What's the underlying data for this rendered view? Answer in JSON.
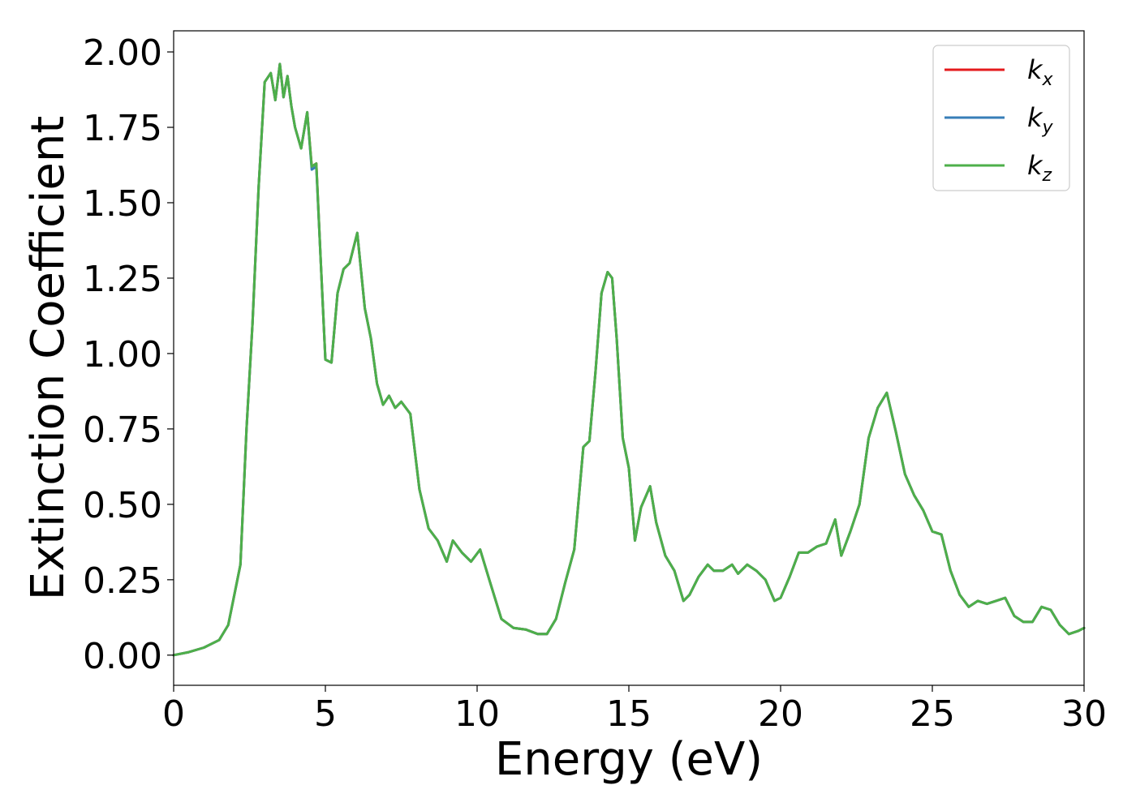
{
  "chart_data": {
    "type": "line",
    "title": "",
    "xlabel": "Energy (eV)",
    "ylabel": "Extinction Coefficient",
    "xlim": [
      0,
      30
    ],
    "ylim": [
      -0.1,
      2.07
    ],
    "xticks": [
      0,
      5,
      10,
      15,
      20,
      25,
      30
    ],
    "xtick_labels": [
      "0",
      "5",
      "10",
      "15",
      "20",
      "25",
      "30"
    ],
    "yticks": [
      0,
      0.25,
      0.5,
      0.75,
      1.0,
      1.25,
      1.5,
      1.75,
      2.0
    ],
    "ytick_labels": [
      "0.00",
      "0.25",
      "0.50",
      "0.75",
      "1.00",
      "1.25",
      "1.50",
      "1.75",
      "2.00"
    ],
    "grid": false,
    "legend_position": "top-right",
    "x": [
      0,
      0.5,
      1.0,
      1.5,
      1.8,
      2.0,
      2.2,
      2.4,
      2.6,
      2.8,
      3.0,
      3.2,
      3.35,
      3.5,
      3.62,
      3.75,
      3.88,
      4.0,
      4.2,
      4.4,
      4.55,
      4.7,
      4.85,
      5.0,
      5.2,
      5.4,
      5.6,
      5.8,
      6.05,
      6.3,
      6.5,
      6.7,
      6.9,
      7.1,
      7.3,
      7.5,
      7.8,
      8.1,
      8.4,
      8.7,
      9.0,
      9.2,
      9.5,
      9.8,
      10.1,
      10.4,
      10.8,
      11.2,
      11.6,
      12.0,
      12.3,
      12.6,
      12.9,
      13.2,
      13.5,
      13.7,
      13.9,
      14.1,
      14.3,
      14.45,
      14.6,
      14.8,
      15.0,
      15.2,
      15.4,
      15.7,
      15.9,
      16.2,
      16.5,
      16.8,
      17.0,
      17.3,
      17.6,
      17.8,
      18.1,
      18.4,
      18.6,
      18.9,
      19.2,
      19.5,
      19.8,
      20.0,
      20.3,
      20.6,
      20.9,
      21.2,
      21.5,
      21.8,
      22.0,
      22.3,
      22.6,
      22.9,
      23.2,
      23.5,
      23.8,
      24.1,
      24.4,
      24.7,
      25.0,
      25.3,
      25.6,
      25.9,
      26.2,
      26.5,
      26.8,
      27.1,
      27.4,
      27.7,
      28.0,
      28.3,
      28.6,
      28.9,
      29.2,
      29.5,
      29.8,
      30.0
    ],
    "series": [
      {
        "name": "x",
        "color": "#e41a1c",
        "values": [
          0.0,
          0.01,
          0.025,
          0.05,
          0.1,
          0.2,
          0.3,
          0.75,
          1.1,
          1.55,
          1.9,
          1.93,
          1.84,
          1.96,
          1.85,
          1.92,
          1.82,
          1.75,
          1.68,
          1.8,
          1.62,
          1.63,
          1.3,
          0.98,
          0.97,
          1.2,
          1.28,
          1.3,
          1.4,
          1.15,
          1.05,
          0.9,
          0.83,
          0.86,
          0.82,
          0.84,
          0.8,
          0.55,
          0.42,
          0.38,
          0.31,
          0.38,
          0.34,
          0.31,
          0.35,
          0.25,
          0.12,
          0.09,
          0.085,
          0.07,
          0.07,
          0.12,
          0.24,
          0.35,
          0.69,
          0.71,
          0.94,
          1.2,
          1.27,
          1.25,
          1.05,
          0.72,
          0.62,
          0.38,
          0.49,
          0.56,
          0.44,
          0.33,
          0.28,
          0.18,
          0.2,
          0.26,
          0.3,
          0.28,
          0.28,
          0.3,
          0.27,
          0.3,
          0.28,
          0.25,
          0.18,
          0.19,
          0.26,
          0.34,
          0.34,
          0.36,
          0.37,
          0.45,
          0.33,
          0.41,
          0.5,
          0.72,
          0.82,
          0.87,
          0.74,
          0.6,
          0.53,
          0.48,
          0.41,
          0.4,
          0.28,
          0.2,
          0.16,
          0.18,
          0.17,
          0.18,
          0.19,
          0.13,
          0.11,
          0.11,
          0.16,
          0.15,
          0.1,
          0.07,
          0.08,
          0.09
        ]
      },
      {
        "name": "y",
        "color": "#377eb8",
        "values": [
          0.0,
          0.01,
          0.025,
          0.05,
          0.1,
          0.2,
          0.3,
          0.75,
          1.1,
          1.55,
          1.9,
          1.93,
          1.84,
          1.96,
          1.85,
          1.92,
          1.82,
          1.75,
          1.68,
          1.8,
          1.61,
          1.62,
          1.3,
          0.98,
          0.97,
          1.2,
          1.28,
          1.3,
          1.4,
          1.15,
          1.05,
          0.9,
          0.83,
          0.86,
          0.82,
          0.84,
          0.8,
          0.55,
          0.42,
          0.38,
          0.31,
          0.38,
          0.34,
          0.31,
          0.35,
          0.25,
          0.12,
          0.09,
          0.085,
          0.07,
          0.07,
          0.12,
          0.24,
          0.35,
          0.69,
          0.71,
          0.94,
          1.2,
          1.27,
          1.25,
          1.05,
          0.72,
          0.62,
          0.38,
          0.49,
          0.56,
          0.44,
          0.33,
          0.28,
          0.18,
          0.2,
          0.26,
          0.3,
          0.28,
          0.28,
          0.3,
          0.27,
          0.3,
          0.28,
          0.25,
          0.18,
          0.19,
          0.26,
          0.34,
          0.34,
          0.36,
          0.37,
          0.45,
          0.33,
          0.41,
          0.5,
          0.72,
          0.82,
          0.87,
          0.74,
          0.6,
          0.53,
          0.48,
          0.41,
          0.4,
          0.28,
          0.2,
          0.16,
          0.18,
          0.17,
          0.18,
          0.19,
          0.13,
          0.11,
          0.11,
          0.16,
          0.15,
          0.1,
          0.07,
          0.08,
          0.09
        ]
      },
      {
        "name": "z",
        "color": "#4daf4a",
        "values": [
          0.0,
          0.01,
          0.025,
          0.05,
          0.1,
          0.2,
          0.3,
          0.75,
          1.1,
          1.55,
          1.9,
          1.93,
          1.84,
          1.96,
          1.85,
          1.92,
          1.82,
          1.75,
          1.68,
          1.8,
          1.62,
          1.63,
          1.3,
          0.98,
          0.97,
          1.2,
          1.28,
          1.3,
          1.4,
          1.15,
          1.05,
          0.9,
          0.83,
          0.86,
          0.82,
          0.84,
          0.8,
          0.55,
          0.42,
          0.38,
          0.31,
          0.38,
          0.34,
          0.31,
          0.35,
          0.25,
          0.12,
          0.09,
          0.085,
          0.07,
          0.07,
          0.12,
          0.24,
          0.35,
          0.69,
          0.71,
          0.94,
          1.2,
          1.27,
          1.25,
          1.05,
          0.72,
          0.62,
          0.38,
          0.49,
          0.56,
          0.44,
          0.33,
          0.28,
          0.18,
          0.2,
          0.26,
          0.3,
          0.28,
          0.28,
          0.3,
          0.27,
          0.3,
          0.28,
          0.25,
          0.18,
          0.19,
          0.26,
          0.34,
          0.34,
          0.36,
          0.37,
          0.45,
          0.33,
          0.41,
          0.5,
          0.72,
          0.82,
          0.87,
          0.74,
          0.6,
          0.53,
          0.48,
          0.41,
          0.4,
          0.28,
          0.2,
          0.16,
          0.18,
          0.17,
          0.18,
          0.19,
          0.13,
          0.11,
          0.11,
          0.16,
          0.15,
          0.1,
          0.07,
          0.08,
          0.09
        ]
      }
    ],
    "legend": [
      {
        "base": "k",
        "sub": "x",
        "color": "#e41a1c"
      },
      {
        "base": "k",
        "sub": "y",
        "color": "#377eb8"
      },
      {
        "base": "k",
        "sub": "z",
        "color": "#4daf4a"
      }
    ]
  }
}
